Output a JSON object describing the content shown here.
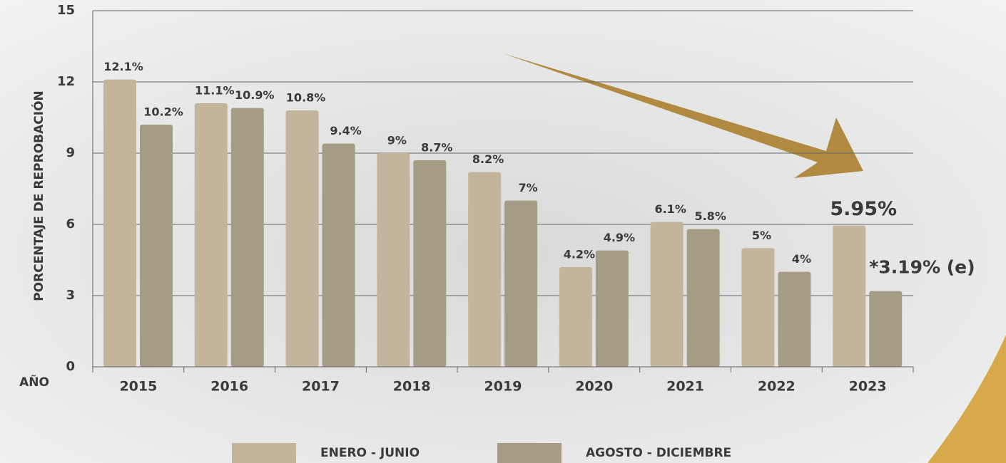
{
  "chart_data": {
    "type": "bar",
    "y_label": "PORCENTAJE DE REPROBACIÓN",
    "x_label": "AÑO",
    "categories": [
      "2015",
      "2016",
      "2017",
      "2018",
      "2019",
      "2020",
      "2021",
      "2022",
      "2023"
    ],
    "series": [
      {
        "name": "ENERO - JUNIO",
        "color": "#c2b59b",
        "values": [
          12.1,
          11.1,
          10.8,
          9,
          8.2,
          4.2,
          6.1,
          5,
          5.95
        ],
        "value_labels": [
          "12.1%",
          "11.1%",
          "10.8%",
          "9%",
          "8.2%",
          "4.2%",
          "6.1%",
          "5%",
          "5.95%"
        ]
      },
      {
        "name": "AGOSTO - DICIEMBRE",
        "color": "#a59c86",
        "values": [
          10.2,
          10.9,
          9.4,
          8.7,
          7,
          4.9,
          5.8,
          4,
          3.19
        ],
        "value_labels": [
          "10.2%",
          "10.9%",
          "9.4%",
          "8.7%",
          "7%",
          "4.9%",
          "5.8%",
          "4%",
          "*3.19% (e)"
        ]
      }
    ],
    "highlight_color": "#9a6a22",
    "ylim": [
      0,
      15
    ],
    "yticks": [
      0,
      3,
      6,
      9,
      12,
      15
    ],
    "grid": true,
    "legend": "bottom"
  }
}
